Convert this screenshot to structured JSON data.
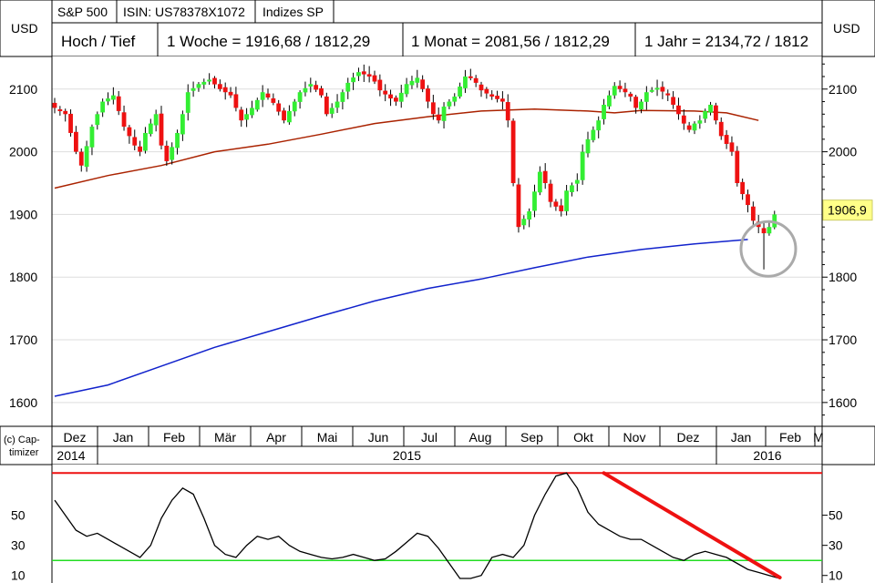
{
  "header": {
    "symbol": "S&P 500",
    "isin": "ISIN: US78378X1072",
    "group": "Indizes SP",
    "currency_left": "USD",
    "currency_right": "USD"
  },
  "range_row": {
    "label": "Hoch / Tief",
    "week": "1 Woche = 1916,68 / 1812,29",
    "month": "1 Monat = 2081,56 / 1812,29",
    "year": "1 Jahr = 2134,72 / 1812"
  },
  "copyright": {
    "line1": "(c) Cap-",
    "line2": "timizer"
  },
  "colors": {
    "up_candle": "#33ee33",
    "down_candle": "#ee1111",
    "ma_200": "#aa2200",
    "ma_long": "#1122cc",
    "oscillator": "#000000",
    "upper_line": "#ee1111",
    "lower_line": "#22dd22",
    "trend_line": "#ee1111",
    "price_badge": "#ffff88",
    "grid": "#999999"
  },
  "chart_data": [
    {
      "type": "candlestick",
      "title": "S&P 500",
      "ylabel": "USD",
      "ylim": [
        1562,
        2152
      ],
      "yticks": [
        1600,
        1700,
        1800,
        1900,
        2000,
        2100
      ],
      "ytick_labels": [
        "1600",
        "1700",
        "1800",
        "1900",
        "2000",
        "2100"
      ],
      "month_labels": [
        "Dez",
        "Jan",
        "Feb",
        "Mär",
        "Apr",
        "Mai",
        "Jun",
        "Jul",
        "Aug",
        "Sep",
        "Okt",
        "Nov",
        "Dez",
        "Jan",
        "Feb",
        "M"
      ],
      "year_labels": [
        "2014",
        "2015",
        "2016"
      ],
      "last_price_label": "1906,9",
      "last_price": 1906.9,
      "grid": true,
      "annotation": "grey circle around the January 2016 low near the long moving average",
      "close_path": [
        [
          0,
          2070
        ],
        [
          2,
          2060
        ],
        [
          4,
          2000
        ],
        [
          5,
          1978
        ],
        [
          7,
          2040
        ],
        [
          9,
          2080
        ],
        [
          10,
          2085
        ],
        [
          11,
          2090
        ],
        [
          13,
          2040
        ],
        [
          15,
          2010
        ],
        [
          16,
          2000
        ],
        [
          17,
          2030
        ],
        [
          19,
          2060
        ],
        [
          20,
          2010
        ],
        [
          21,
          1985
        ],
        [
          23,
          2030
        ],
        [
          24,
          2060
        ],
        [
          25,
          2095
        ],
        [
          27,
          2108
        ],
        [
          29,
          2115
        ],
        [
          31,
          2100
        ],
        [
          33,
          2090
        ],
        [
          35,
          2050
        ],
        [
          37,
          2070
        ],
        [
          39,
          2095
        ],
        [
          41,
          2078
        ],
        [
          43,
          2050
        ],
        [
          44,
          2065
        ],
        [
          46,
          2095
        ],
        [
          48,
          2108
        ],
        [
          50,
          2090
        ],
        [
          51,
          2060
        ],
        [
          53,
          2080
        ],
        [
          55,
          2110
        ],
        [
          57,
          2127
        ],
        [
          59,
          2120
        ],
        [
          60,
          2112
        ],
        [
          61,
          2098
        ],
        [
          63,
          2085
        ],
        [
          64,
          2080
        ],
        [
          66,
          2108
        ],
        [
          68,
          2118
        ],
        [
          69,
          2100
        ],
        [
          71,
          2060
        ],
        [
          72,
          2050
        ],
        [
          73,
          2072
        ],
        [
          75,
          2088
        ],
        [
          77,
          2120
        ],
        [
          78,
          2118
        ],
        [
          79,
          2110
        ],
        [
          80,
          2098
        ],
        [
          82,
          2088
        ],
        [
          84,
          2080
        ],
        [
          85,
          2050
        ],
        [
          86,
          1950
        ],
        [
          87,
          1880
        ],
        [
          88,
          1893
        ],
        [
          89,
          1905
        ],
        [
          91,
          1968
        ],
        [
          92,
          1950
        ],
        [
          93,
          1920
        ],
        [
          95,
          1905
        ],
        [
          96,
          1938
        ],
        [
          98,
          1955
        ],
        [
          99,
          2000
        ],
        [
          100,
          2020
        ],
        [
          102,
          2050
        ],
        [
          103,
          2075
        ],
        [
          105,
          2105
        ],
        [
          107,
          2095
        ],
        [
          108,
          2088
        ],
        [
          109,
          2070
        ],
        [
          110,
          2080
        ],
        [
          111,
          2095
        ],
        [
          113,
          2102
        ],
        [
          115,
          2090
        ],
        [
          117,
          2060
        ],
        [
          118,
          2045
        ],
        [
          119,
          2035
        ],
        [
          120,
          2045
        ],
        [
          121,
          2050
        ],
        [
          122,
          2065
        ],
        [
          123,
          2075
        ],
        [
          125,
          2025
        ],
        [
          127,
          2000
        ],
        [
          128,
          1950
        ],
        [
          130,
          1915
        ],
        [
          131,
          1890
        ],
        [
          132,
          1880
        ],
        [
          133,
          1870
        ],
        [
          134,
          1880
        ],
        [
          135,
          1900
        ]
      ],
      "series": [
        {
          "name": "Gleitender Durchschnitt 1",
          "path": [
            [
              0,
              1942
            ],
            [
              10,
              1962
            ],
            [
              20,
              1978
            ],
            [
              30,
              2000
            ],
            [
              40,
              2012
            ],
            [
              50,
              2028
            ],
            [
              60,
              2045
            ],
            [
              70,
              2056
            ],
            [
              80,
              2065
            ],
            [
              90,
              2068
            ],
            [
              100,
              2065
            ],
            [
              105,
              2062
            ],
            [
              110,
              2066
            ],
            [
              120,
              2065
            ],
            [
              126,
              2062
            ],
            [
              132,
              2050
            ]
          ]
        },
        {
          "name": "Gleitender Durchschnitt 2",
          "path": [
            [
              0,
              1610
            ],
            [
              10,
              1628
            ],
            [
              20,
              1658
            ],
            [
              30,
              1688
            ],
            [
              40,
              1713
            ],
            [
              50,
              1738
            ],
            [
              60,
              1762
            ],
            [
              70,
              1782
            ],
            [
              80,
              1797
            ],
            [
              90,
              1815
            ],
            [
              100,
              1832
            ],
            [
              110,
              1844
            ],
            [
              120,
              1853
            ],
            [
              130,
              1860
            ]
          ]
        }
      ]
    },
    {
      "type": "line",
      "yticks": [
        10,
        30,
        50
      ],
      "ytick_labels": [
        "10",
        "30",
        "50"
      ],
      "ylim": [
        5,
        80
      ],
      "upper_level": 78,
      "lower_level": 20,
      "series": [
        {
          "name": "Oszillator",
          "x": [
            0,
            2,
            4,
            6,
            8,
            10,
            12,
            14,
            16,
            18,
            20,
            22,
            24,
            26,
            28,
            30,
            32,
            34,
            36,
            38,
            40,
            42,
            44,
            46,
            48,
            50,
            52,
            54,
            56,
            58,
            60,
            62,
            64,
            66,
            68,
            70,
            72,
            74,
            76,
            78,
            80,
            82,
            84,
            86,
            88,
            90,
            92,
            94,
            96,
            98,
            100,
            102,
            104,
            106,
            108,
            110,
            112,
            114,
            116,
            118,
            120,
            122,
            124,
            126,
            128,
            130,
            132,
            134,
            136
          ],
          "values": [
            60,
            50,
            40,
            36,
            38,
            34,
            30,
            26,
            22,
            30,
            48,
            60,
            68,
            64,
            48,
            30,
            24,
            22,
            30,
            36,
            34,
            36,
            30,
            26,
            24,
            22,
            21,
            22,
            24,
            22,
            20,
            21,
            26,
            32,
            38,
            36,
            28,
            18,
            8,
            8,
            10,
            22,
            24,
            22,
            30,
            50,
            64,
            76,
            78,
            68,
            52,
            44,
            40,
            36,
            34,
            34,
            30,
            26,
            22,
            20,
            24,
            26,
            24,
            22,
            18,
            14,
            12,
            10,
            8
          ]
        },
        {
          "name": "Trendlinie",
          "x": [
            103,
            136
          ],
          "values": [
            78,
            6
          ]
        }
      ]
    }
  ]
}
